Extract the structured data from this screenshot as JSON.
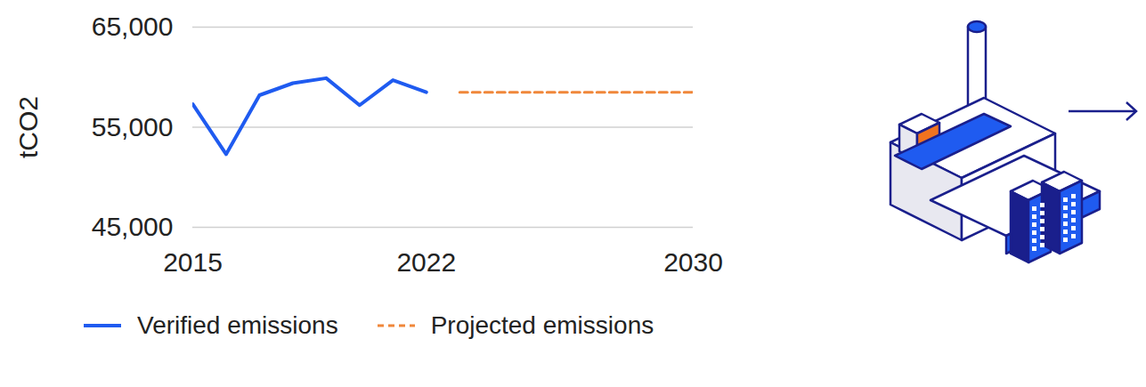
{
  "chart_data": {
    "type": "line",
    "y_label": "tCO2",
    "x": [
      2015,
      2016,
      2017,
      2018,
      2019,
      2020,
      2021,
      2022,
      2023,
      2024,
      2025,
      2026,
      2027,
      2028,
      2029,
      2030
    ],
    "series": [
      {
        "name": "Verified emissions",
        "color": "#1f5bf0",
        "line_style": "solid",
        "values": [
          57300,
          52300,
          58200,
          59400,
          59900,
          57200,
          59700,
          58500,
          null,
          null,
          null,
          null,
          null,
          null,
          null,
          null
        ]
      },
      {
        "name": "Projected emissions",
        "color": "#f0873a",
        "line_style": "dashed",
        "values": [
          null,
          null,
          null,
          null,
          null,
          null,
          null,
          null,
          58500,
          58500,
          58500,
          58500,
          58500,
          58500,
          58500,
          58500
        ]
      }
    ],
    "xlim": [
      2015,
      2030
    ],
    "xticks": [
      2015,
      2022,
      2030
    ],
    "ylim": [
      45000,
      65000
    ],
    "yticks": [
      {
        "value": 45000,
        "label": "45,000"
      },
      {
        "value": 55000,
        "label": "55,000"
      },
      {
        "value": 65000,
        "label": "65,000"
      }
    ],
    "grid": true,
    "legend": "bottom"
  }
}
